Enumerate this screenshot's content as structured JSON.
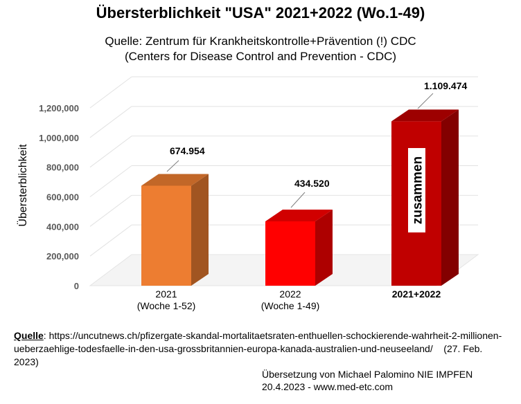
{
  "title": "Übersterblichkeit \"USA\" 2021+2022 (Wo.1-49)",
  "subtitle_line1": "Quelle: Zentrum für Krankheitskontrolle+Prävention (!) CDC",
  "subtitle_line2": "(Centers for Disease Control and Prevention - CDC)",
  "chart_data": {
    "type": "bar",
    "ylabel": "Übersterblichkeit",
    "ylim": [
      0,
      1200000
    ],
    "yticks": [
      0,
      200000,
      400000,
      600000,
      800000,
      1000000,
      1200000
    ],
    "ytick_labels": [
      "0",
      "200,000",
      "400,000",
      "600,000",
      "800,000",
      "1,000,000",
      "1,200,000"
    ],
    "bars": [
      {
        "category": "2021",
        "category_sub": "(Woche 1-52)",
        "value": 674954,
        "label": "674.954",
        "color": "#ED7D31"
      },
      {
        "category": "2022",
        "category_sub": "(Woche 1-49)",
        "value": 434520,
        "label": "434.520",
        "color": "#FF0000"
      },
      {
        "category": "2021+2022",
        "category_sub": "",
        "value": 1109474,
        "label": "1.109.474",
        "color": "#C00000",
        "annotation": "zusammen"
      }
    ]
  },
  "footer": {
    "source_label": "Quelle",
    "source_text": ": https://uncutnews.ch/pfizergate-skandal-mortalitaetsraten-enthuellen-schockierende-wahrheit-2-millionen-ueberzaehlige-todesfaelle-in-den-usa-grossbritannien-europa-kanada-australien-und-neuseeland/",
    "source_date": "(27. Feb. 2023)",
    "credit_line1": "Übersetzung von Michael Palomino NIE IMPFEN",
    "credit_line2": "20.4.2023 - www.med-etc.com"
  }
}
